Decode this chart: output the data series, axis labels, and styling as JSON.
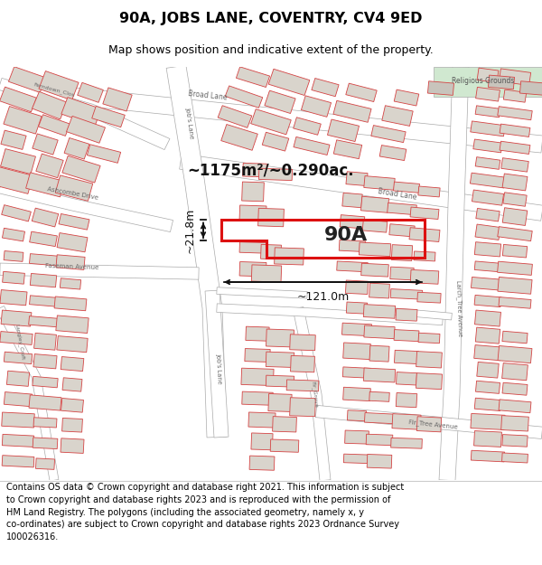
{
  "title": "90A, JOBS LANE, COVENTRY, CV4 9ED",
  "subtitle": "Map shows position and indicative extent of the property.",
  "footer": "Contains OS data © Crown copyright and database right 2021. This information is subject\nto Crown copyright and database rights 2023 and is reproduced with the permission of\nHM Land Registry. The polygons (including the associated geometry, namely x, y\nco-ordinates) are subject to Crown copyright and database rights 2023 Ordnance Survey\n100026316.",
  "area_label": "~1175m²/~0.290ac.",
  "plot_label": "90A",
  "dim_width": "~121.0m",
  "dim_height": "~21.8m",
  "bg_color": "#ffffff",
  "map_bg": "#f0ede8",
  "road_fill": "#ffffff",
  "road_edge": "#aaaaaa",
  "bldg_fill": "#d9d4cc",
  "bldg_edge": "#d44444",
  "bldg_lw": 0.6,
  "plot_edge": "#dd1111",
  "plot_lw": 2.2,
  "title_color": "#000000",
  "footer_color": "#000000",
  "road_label_color": "#666666",
  "annotation_color": "#111111",
  "green_fill": "#d0e8d0",
  "green_edge": "#aaaaaa"
}
